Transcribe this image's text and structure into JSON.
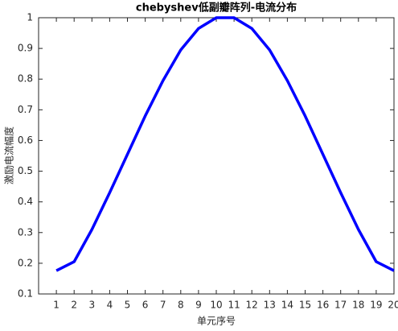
{
  "chart_data": {
    "type": "line",
    "title": "chebyshev低副瓣阵列-电流分布",
    "x_label": "单元序号",
    "y_label": "激励电流幅度",
    "x": [
      1,
      2,
      3,
      4,
      5,
      6,
      7,
      8,
      9,
      10,
      11,
      12,
      13,
      14,
      15,
      16,
      17,
      18,
      19,
      20
    ],
    "values": [
      0.176,
      0.205,
      0.31,
      0.43,
      0.555,
      0.68,
      0.795,
      0.895,
      0.965,
      1.0,
      1.0,
      0.965,
      0.895,
      0.795,
      0.68,
      0.555,
      0.43,
      0.31,
      0.205,
      0.176
    ],
    "color": "#0000ff",
    "xlim": [
      0,
      20
    ],
    "xticks": [
      1,
      2,
      3,
      4,
      5,
      6,
      7,
      8,
      9,
      10,
      11,
      12,
      13,
      14,
      15,
      16,
      17,
      18,
      19,
      20
    ],
    "ylim": [
      0.1,
      1
    ],
    "yticks": [
      0.1,
      0.2,
      0.3,
      0.4,
      0.5,
      0.6,
      0.7,
      0.8,
      0.9,
      1
    ],
    "grid": false
  }
}
